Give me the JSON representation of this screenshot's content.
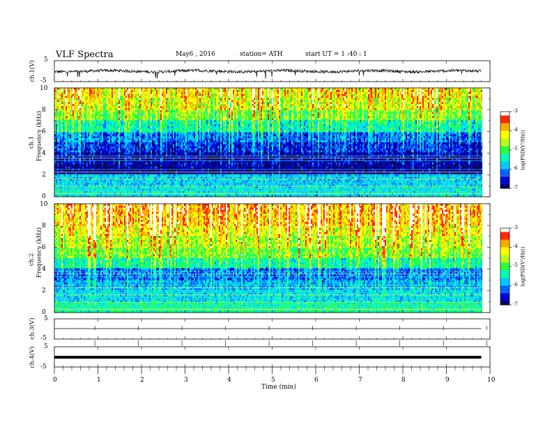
{
  "header": {
    "title": "VLF Spectra",
    "date": "May6  , 2016",
    "station": "station= ATH",
    "start": "start  UT  =   1  :40 : 1"
  },
  "chart_data": [
    {
      "type": "line",
      "panel": "ch1-waveform",
      "ylabel": "ch.1(V)",
      "ylim": [
        -5,
        5
      ],
      "yticks": [
        "5",
        "-5"
      ],
      "x_range_min": [
        0,
        9.8
      ],
      "note_values": "continuous noisy waveform, mean ~0 V, amplitude about ±1 V with occasional spikes to about -3 V"
    },
    {
      "type": "heatmap",
      "panel": "ch1-spectrogram",
      "ylabel_top": "ch.1",
      "ylabel": "Frequency  (kHz)",
      "ylim": [
        0,
        10
      ],
      "yticks": [
        "0",
        "2",
        "4",
        "6",
        "8",
        "10"
      ],
      "colorbar": {
        "label": "log(PSD(V²/Hz))",
        "range": [
          -7,
          -3
        ],
        "ticks": [
          "-3",
          "-4",
          "-5",
          "-6",
          "-7"
        ]
      },
      "profile": [
        {
          "f_khz": 0.5,
          "level": -5.6
        },
        {
          "f_khz": 1.5,
          "level": -5.8
        },
        {
          "f_khz": 2.5,
          "level": -6.9
        },
        {
          "f_khz": 3.5,
          "level": -6.8
        },
        {
          "f_khz": 4.5,
          "level": -6.5
        },
        {
          "f_khz": 5.5,
          "level": -6.2
        },
        {
          "f_khz": 6.5,
          "level": -5.5
        },
        {
          "f_khz": 7.5,
          "level": -4.9
        },
        {
          "f_khz": 8.5,
          "level": -4.5
        },
        {
          "f_khz": 9.5,
          "level": -4.3
        }
      ]
    },
    {
      "type": "heatmap",
      "panel": "ch2-spectrogram",
      "ylabel_top": "ch.2",
      "ylabel": "Frequency  (kHz)",
      "ylim": [
        0,
        10
      ],
      "yticks": [
        "0",
        "2",
        "4",
        "6",
        "8",
        "10"
      ],
      "colorbar": {
        "label": "log(PSD(V²/Hz))",
        "range": [
          -7,
          -3
        ],
        "ticks": [
          "-3",
          "-4",
          "-5",
          "-6",
          "-7"
        ]
      },
      "profile": [
        {
          "f_khz": 0.5,
          "level": -5.3
        },
        {
          "f_khz": 1.5,
          "level": -5.7
        },
        {
          "f_khz": 2.5,
          "level": -5.9
        },
        {
          "f_khz": 3.5,
          "level": -6.2
        },
        {
          "f_khz": 4.5,
          "level": -5.4
        },
        {
          "f_khz": 5.5,
          "level": -4.9
        },
        {
          "f_khz": 6.5,
          "level": -4.6
        },
        {
          "f_khz": 7.5,
          "level": -4.3
        },
        {
          "f_khz": 8.5,
          "level": -4.0
        },
        {
          "f_khz": 9.5,
          "level": -3.9
        }
      ]
    },
    {
      "type": "line",
      "panel": "ch3-waveform",
      "ylabel": "ch.3(V)",
      "ylim": [
        -5,
        5
      ],
      "yticks": [
        "5",
        "-5"
      ],
      "note_values": "flat trace at about 0 V"
    },
    {
      "type": "line",
      "panel": "ch4-waveform",
      "ylabel": "ch.4(V)",
      "ylim": [
        -5,
        5
      ],
      "yticks": [
        "5",
        "-5"
      ],
      "note_values": "flat thick trace at about -1 V"
    }
  ],
  "xaxis": {
    "label": "Time  (min)",
    "range": [
      0,
      10
    ],
    "ticks": [
      "0",
      "1",
      "2",
      "3",
      "4",
      "5",
      "6",
      "7",
      "8",
      "9",
      "10"
    ]
  },
  "colors": {
    "colormap": [
      "#00005a",
      "#0000d2",
      "#0064ff",
      "#00c8ff",
      "#00ffb4",
      "#28ff3c",
      "#b4ff1e",
      "#ffff00",
      "#ffaa00",
      "#ff2800",
      "#ffffff"
    ]
  }
}
